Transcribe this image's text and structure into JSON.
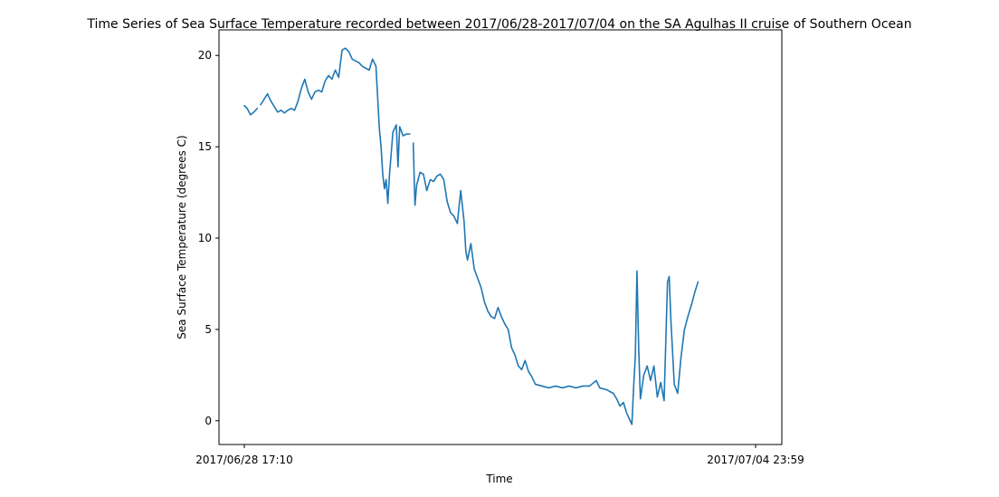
{
  "chart_data": {
    "type": "line",
    "title": "Time Series of Sea Surface Temperature recorded between 2017/06/28-2017/07/04 on the SA Agulhas II cruise of Southern Ocean",
    "xlabel": "Time",
    "ylabel": "Sea Surface Temperature (degrees C)",
    "x_ticks": [
      "2017/06/28 17:10",
      "2017/07/04 23:59"
    ],
    "xlim": [
      "2017/06/28 17:10",
      "2017/07/04 23:59"
    ],
    "y_ticks": [
      0,
      5,
      10,
      15,
      20
    ],
    "ylim": [
      -1.3,
      21.4
    ],
    "grid": false,
    "line_color": "#1f77b4",
    "series": [
      {
        "segments": [
          [
            [
              "2017/06/28 17:10",
              17.25
            ],
            [
              "2017/06/28 18:00",
              17.1
            ],
            [
              "2017/06/28 19:00",
              16.75
            ],
            [
              "2017/06/28 20:00",
              16.9
            ],
            [
              "2017/06/28 21:00",
              17.1
            ]
          ],
          [
            [
              "2017/06/28 22:00",
              17.3
            ],
            [
              "2017/06/29 00:00",
              17.9
            ],
            [
              "2017/06/29 01:00",
              17.5
            ],
            [
              "2017/06/29 02:00",
              17.2
            ],
            [
              "2017/06/29 03:00",
              16.9
            ],
            [
              "2017/06/29 04:00",
              17.0
            ],
            [
              "2017/06/29 05:00",
              16.85
            ],
            [
              "2017/06/29 06:00",
              17.0
            ],
            [
              "2017/06/29 07:00",
              17.1
            ],
            [
              "2017/06/29 08:00",
              17.0
            ],
            [
              "2017/06/29 09:00",
              17.5
            ],
            [
              "2017/06/29 10:00",
              18.2
            ],
            [
              "2017/06/29 11:00",
              18.7
            ],
            [
              "2017/06/29 12:00",
              18.0
            ],
            [
              "2017/06/29 13:00",
              17.6
            ],
            [
              "2017/06/29 14:00",
              18.0
            ],
            [
              "2017/06/29 15:00",
              18.1
            ],
            [
              "2017/06/29 16:00",
              18.0
            ],
            [
              "2017/06/29 17:00",
              18.6
            ],
            [
              "2017/06/29 18:00",
              18.9
            ],
            [
              "2017/06/29 19:00",
              18.7
            ],
            [
              "2017/06/29 20:00",
              19.2
            ],
            [
              "2017/06/29 21:00",
              18.8
            ],
            [
              "2017/06/29 22:00",
              20.3
            ],
            [
              "2017/06/29 23:00",
              20.4
            ],
            [
              "2017/06/30 00:00",
              20.2
            ],
            [
              "2017/06/30 01:00",
              19.8
            ],
            [
              "2017/06/30 02:00",
              19.7
            ],
            [
              "2017/06/30 03:00",
              19.6
            ],
            [
              "2017/06/30 04:00",
              19.4
            ],
            [
              "2017/06/30 05:00",
              19.3
            ],
            [
              "2017/06/30 06:00",
              19.2
            ],
            [
              "2017/06/30 07:00",
              19.8
            ],
            [
              "2017/06/30 08:00",
              19.4
            ],
            [
              "2017/06/30 09:00",
              16.0
            ],
            [
              "2017/06/30 09:30",
              15.0
            ],
            [
              "2017/06/30 10:00",
              13.5
            ],
            [
              "2017/06/30 10:30",
              12.7
            ],
            [
              "2017/06/30 11:00",
              13.2
            ],
            [
              "2017/06/30 11:30",
              11.9
            ],
            [
              "2017/06/30 12:00",
              13.5
            ],
            [
              "2017/06/30 13:00",
              15.8
            ],
            [
              "2017/06/30 14:00",
              16.2
            ],
            [
              "2017/06/30 14:30",
              13.9
            ],
            [
              "2017/06/30 15:00",
              16.1
            ],
            [
              "2017/06/30 16:00",
              15.6
            ],
            [
              "2017/06/30 17:00",
              15.7
            ],
            [
              "2017/06/30 18:00",
              15.7
            ]
          ],
          [
            [
              "2017/06/30 19:00",
              15.2
            ],
            [
              "2017/06/30 19:30",
              11.8
            ],
            [
              "2017/06/30 20:00",
              12.9
            ],
            [
              "2017/06/30 21:00",
              13.6
            ],
            [
              "2017/06/30 22:00",
              13.5
            ],
            [
              "2017/06/30 23:00",
              12.6
            ],
            [
              "2017/07/01 00:00",
              13.2
            ],
            [
              "2017/07/01 01:00",
              13.1
            ],
            [
              "2017/07/01 02:00",
              13.4
            ],
            [
              "2017/07/01 03:00",
              13.5
            ],
            [
              "2017/07/01 04:00",
              13.2
            ],
            [
              "2017/07/01 05:00",
              12.0
            ],
            [
              "2017/07/01 06:00",
              11.4
            ],
            [
              "2017/07/01 07:00",
              11.2
            ],
            [
              "2017/07/01 08:00",
              10.8
            ],
            [
              "2017/07/01 09:00",
              12.6
            ],
            [
              "2017/07/01 10:00",
              10.9
            ],
            [
              "2017/07/01 10:30",
              9.3
            ],
            [
              "2017/07/01 11:00",
              8.8
            ],
            [
              "2017/07/01 12:00",
              9.7
            ],
            [
              "2017/07/01 13:00",
              8.3
            ],
            [
              "2017/07/01 14:00",
              7.8
            ],
            [
              "2017/07/01 15:00",
              7.3
            ],
            [
              "2017/07/01 16:00",
              6.5
            ],
            [
              "2017/07/01 17:00",
              6.0
            ],
            [
              "2017/07/01 18:00",
              5.7
            ],
            [
              "2017/07/01 19:00",
              5.6
            ],
            [
              "2017/07/01 20:00",
              6.2
            ],
            [
              "2017/07/01 21:00",
              5.7
            ],
            [
              "2017/07/01 22:00",
              5.3
            ],
            [
              "2017/07/01 23:00",
              5.0
            ],
            [
              "2017/07/02 00:00",
              4.0
            ],
            [
              "2017/07/02 01:00",
              3.6
            ],
            [
              "2017/07/02 02:00",
              3.0
            ],
            [
              "2017/07/02 03:00",
              2.8
            ],
            [
              "2017/07/02 04:00",
              3.3
            ],
            [
              "2017/07/02 05:00",
              2.7
            ],
            [
              "2017/07/02 06:00",
              2.4
            ],
            [
              "2017/07/02 07:00",
              2.0
            ],
            [
              "2017/07/02 09:00",
              1.9
            ],
            [
              "2017/07/02 11:00",
              1.8
            ],
            [
              "2017/07/02 13:00",
              1.9
            ],
            [
              "2017/07/02 15:00",
              1.8
            ],
            [
              "2017/07/02 17:00",
              1.9
            ],
            [
              "2017/07/02 19:00",
              1.8
            ],
            [
              "2017/07/02 21:00",
              1.9
            ],
            [
              "2017/07/02 23:00",
              1.9
            ],
            [
              "2017/07/03 01:00",
              2.2
            ],
            [
              "2017/07/03 02:00",
              1.8
            ],
            [
              "2017/07/03 04:00",
              1.7
            ],
            [
              "2017/07/03 06:00",
              1.5
            ],
            [
              "2017/07/03 07:00",
              1.2
            ],
            [
              "2017/07/03 08:00",
              0.8
            ],
            [
              "2017/07/03 09:00",
              1.0
            ],
            [
              "2017/07/03 10:00",
              0.4
            ],
            [
              "2017/07/03 11:00",
              0.0
            ],
            [
              "2017/07/03 11:30",
              -0.2
            ],
            [
              "2017/07/03 12:00",
              1.8
            ],
            [
              "2017/07/03 12:30",
              3.5
            ],
            [
              "2017/07/03 13:00",
              8.2
            ],
            [
              "2017/07/03 13:30",
              4.0
            ],
            [
              "2017/07/03 14:00",
              1.2
            ],
            [
              "2017/07/03 15:00",
              2.5
            ],
            [
              "2017/07/03 16:00",
              3.0
            ],
            [
              "2017/07/03 17:00",
              2.2
            ],
            [
              "2017/07/03 18:00",
              3.0
            ],
            [
              "2017/07/03 19:00",
              1.3
            ],
            [
              "2017/07/03 20:00",
              2.1
            ],
            [
              "2017/07/03 21:00",
              1.1
            ],
            [
              "2017/07/03 22:00",
              7.6
            ],
            [
              "2017/07/03 22:30",
              7.9
            ],
            [
              "2017/07/03 23:00",
              5.5
            ],
            [
              "2017/07/04 00:00",
              2.0
            ],
            [
              "2017/07/04 01:00",
              1.5
            ],
            [
              "2017/07/04 02:00",
              3.5
            ],
            [
              "2017/07/04 03:00",
              5.0
            ],
            [
              "2017/07/04 04:00",
              5.7
            ],
            [
              "2017/07/04 05:00",
              6.3
            ],
            [
              "2017/07/04 06:00",
              7.0
            ],
            [
              "2017/07/04 07:00",
              7.6
            ]
          ]
        ]
      }
    ]
  }
}
